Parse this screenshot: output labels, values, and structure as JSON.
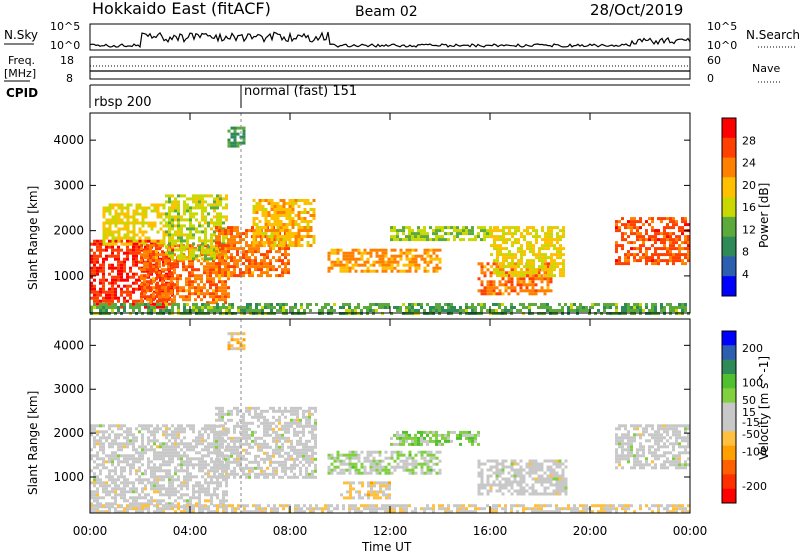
{
  "header": {
    "station": "Hokkaido East (fitACF)",
    "beam": "Beam 02",
    "date": "28/Oct/2019"
  },
  "labels": {
    "nsky": "N.Sky",
    "nsearch": "N.Search",
    "nsky_hi": "10^5",
    "nsky_lo": "10^0",
    "freq": "Freq.",
    "freq_unit": "[MHz]",
    "freq_hi": "18",
    "freq_lo": "8",
    "nave": "Nave",
    "nave_hi": "60",
    "nave_lo": "0",
    "cpid": "CPID",
    "cpid_1": "rbsp 200",
    "cpid_2": "normal (fast) 151",
    "ylabel": "Slant Range [km]",
    "xlabel": "Time UT",
    "power_label": "Power [dB]",
    "velocity_label": "Velocity [m s^-1]"
  },
  "colors": {
    "power": [
      "#0000ff",
      "#2d5fb0",
      "#2e8b57",
      "#5aaa3c",
      "#c8d800",
      "#ffc000",
      "#ff8000",
      "#ff4000",
      "#ff0000"
    ],
    "velocity": [
      "#ff0000",
      "#ff3000",
      "#ff6000",
      "#ffa000",
      "#ffc040",
      "#c8c8c8",
      "#c8c8c8",
      "#80d040",
      "#50c030",
      "#2e8b57",
      "#2d5fb0",
      "#0000ff"
    ],
    "ground": "#c8c8c8"
  },
  "chart_data": [
    {
      "type": "heatmap",
      "title": "Power",
      "xlabel": "Time UT",
      "ylabel": "Slant Range [km]",
      "x_ticks": [
        "00:00",
        "04:00",
        "08:00",
        "12:00",
        "16:00",
        "20:00",
        "00:00"
      ],
      "y_ticks": [
        1000,
        2000,
        3000,
        4000
      ],
      "xlim_hours": [
        0,
        24
      ],
      "ylim_km": [
        180,
        4600
      ],
      "colorbar_label": "Power [dB]",
      "colorbar_ticks": [
        4,
        8,
        12,
        16,
        20,
        24,
        28
      ],
      "colorbar_range": [
        0,
        32
      ],
      "regions": [
        {
          "t0": 0.0,
          "t1": 3.3,
          "r0": 300,
          "r1": 1800,
          "value": 28
        },
        {
          "t0": 0.5,
          "t1": 3.0,
          "r0": 1700,
          "r1": 2600,
          "value": 18
        },
        {
          "t0": 2.0,
          "t1": 5.5,
          "r0": 400,
          "r1": 1700,
          "value": 24
        },
        {
          "t0": 3.0,
          "t1": 5.5,
          "r0": 1400,
          "r1": 2800,
          "value": 16
        },
        {
          "t0": 5.0,
          "t1": 8.0,
          "r0": 1000,
          "r1": 2100,
          "value": 24
        },
        {
          "t0": 6.5,
          "t1": 9.0,
          "r0": 1700,
          "r1": 2700,
          "value": 20
        },
        {
          "t0": 5.5,
          "t1": 6.2,
          "r0": 3900,
          "r1": 4300,
          "value": 10
        },
        {
          "t0": 9.5,
          "t1": 14.0,
          "r0": 1100,
          "r1": 1600,
          "value": 22
        },
        {
          "t0": 12.0,
          "t1": 16.0,
          "r0": 1800,
          "r1": 2100,
          "value": 14
        },
        {
          "t0": 15.5,
          "t1": 18.5,
          "r0": 600,
          "r1": 1300,
          "value": 24
        },
        {
          "t0": 16.0,
          "t1": 19.0,
          "r0": 1000,
          "r1": 2100,
          "value": 18
        },
        {
          "t0": 21.0,
          "t1": 24.0,
          "r0": 1300,
          "r1": 2300,
          "value": 26
        },
        {
          "t0": 0.0,
          "t1": 24.0,
          "r0": 200,
          "r1": 400,
          "value": 12
        }
      ]
    },
    {
      "type": "heatmap",
      "title": "Velocity",
      "xlabel": "Time UT",
      "ylabel": "Slant Range [km]",
      "x_ticks": [
        "00:00",
        "04:00",
        "08:00",
        "12:00",
        "16:00",
        "20:00",
        "00:00"
      ],
      "y_ticks": [
        1000,
        2000,
        3000,
        4000
      ],
      "xlim_hours": [
        0,
        24
      ],
      "ylim_km": [
        180,
        4600
      ],
      "colorbar_label": "Velocity [m s^-1]",
      "colorbar_ticks": [
        200,
        100,
        50,
        15,
        -15,
        -50,
        -100,
        -200
      ],
      "colorbar_range": [
        -250,
        250
      ],
      "regions": [
        {
          "t0": 0.0,
          "t1": 5.5,
          "r0": 300,
          "r1": 2200,
          "value": 0
        },
        {
          "t0": 5.0,
          "t1": 9.0,
          "r0": 1000,
          "r1": 2600,
          "value": 0
        },
        {
          "t0": 9.5,
          "t1": 14.0,
          "r0": 1100,
          "r1": 1600,
          "value": 40
        },
        {
          "t0": 12.0,
          "t1": 15.5,
          "r0": 1750,
          "r1": 2050,
          "value": 60
        },
        {
          "t0": 15.5,
          "t1": 19.0,
          "r0": 600,
          "r1": 1400,
          "value": 0
        },
        {
          "t0": 10.0,
          "t1": 12.0,
          "r0": 500,
          "r1": 900,
          "value": -40
        },
        {
          "t0": 21.0,
          "t1": 24.0,
          "r0": 1200,
          "r1": 2200,
          "value": 0
        },
        {
          "t0": 5.5,
          "t1": 6.2,
          "r0": 3900,
          "r1": 4300,
          "value": -60
        },
        {
          "t0": 0.0,
          "t1": 24.0,
          "r0": 200,
          "r1": 380,
          "value": -30
        }
      ]
    }
  ]
}
